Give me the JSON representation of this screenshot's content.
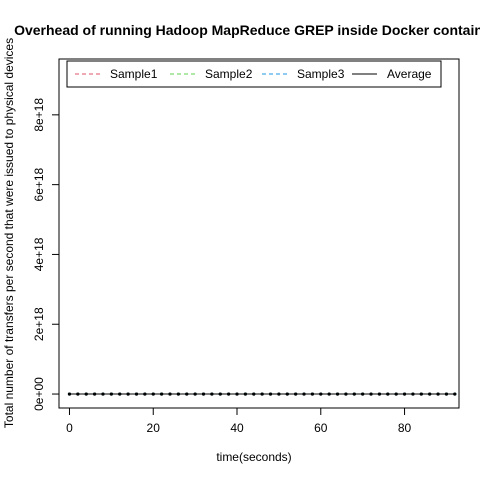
{
  "chart_data": {
    "type": "line",
    "title": "Overhead of running Hadoop MapReduce GREP inside Docker containers",
    "xlabel": "time(seconds)",
    "ylabel": "Total number of transfers per second that were issued to physical devices",
    "xlim": [
      -2.5,
      93
    ],
    "ylim": [
      -4e+17,
      9.6e+18
    ],
    "x_ticks": [
      0,
      20,
      40,
      60,
      80
    ],
    "x_tick_labels": [
      "0",
      "20",
      "40",
      "60",
      "80"
    ],
    "y_ticks": [
      0,
      2e+18,
      4e+18,
      6e+18,
      8e+18
    ],
    "y_tick_labels": [
      "0e+00",
      "2e+18",
      "4e+18",
      "6e+18",
      "8e+18"
    ],
    "grid": false,
    "legend_position": "top-center",
    "x": [
      0,
      2,
      4,
      6,
      8,
      10,
      12,
      14,
      16,
      18,
      20,
      22,
      24,
      26,
      28,
      30,
      32,
      34,
      36,
      38,
      40,
      42,
      44,
      46,
      48,
      50,
      52,
      54,
      56,
      58,
      60,
      62,
      64,
      66,
      68,
      70,
      72,
      74,
      76,
      78,
      80,
      82,
      84,
      86,
      88,
      90,
      92
    ],
    "series": [
      {
        "name": "Sample1",
        "color": "#DF536B",
        "style": "dashed",
        "values": [
          0,
          0,
          0,
          0,
          0,
          0,
          0,
          0,
          0,
          0,
          0,
          0,
          0,
          0,
          0,
          0,
          0,
          0,
          0,
          0,
          0,
          0,
          0,
          0,
          0,
          0,
          0,
          0,
          0,
          0,
          0,
          0,
          0,
          0,
          0,
          0,
          0,
          0,
          0,
          0,
          0,
          0,
          0,
          0,
          0,
          0,
          0
        ]
      },
      {
        "name": "Sample2",
        "color": "#61D04F",
        "style": "dashed",
        "values": [
          0,
          0,
          0,
          0,
          0,
          0,
          0,
          0,
          0,
          0,
          0,
          0,
          0,
          0,
          0,
          0,
          0,
          0,
          0,
          0,
          0,
          0,
          0,
          0,
          0,
          0,
          0,
          0,
          0,
          0,
          0,
          0,
          0,
          0,
          0,
          0,
          0,
          0,
          0,
          0,
          0,
          0,
          0,
          0,
          0,
          0,
          0
        ]
      },
      {
        "name": "Sample3",
        "color": "#2297E6",
        "style": "dashed",
        "values": [
          0,
          0,
          0,
          0,
          0,
          0,
          0,
          0,
          0,
          0,
          0,
          0,
          0,
          0,
          0,
          0,
          0,
          0,
          0,
          0,
          0,
          0,
          0,
          0,
          0,
          0,
          0,
          0,
          0,
          0,
          0,
          0,
          0,
          0,
          0,
          0,
          0,
          0,
          0,
          0,
          0,
          0,
          0,
          0,
          0,
          0,
          0
        ]
      },
      {
        "name": "Average",
        "color": "#000000",
        "style": "solid",
        "values": [
          0,
          0,
          0,
          0,
          0,
          0,
          0,
          0,
          0,
          0,
          0,
          0,
          0,
          0,
          0,
          0,
          0,
          0,
          0,
          0,
          0,
          0,
          0,
          0,
          0,
          0,
          0,
          0,
          0,
          0,
          0,
          0,
          0,
          0,
          0,
          0,
          0,
          0,
          0,
          0,
          0,
          0,
          0,
          0,
          0,
          0,
          0
        ]
      }
    ]
  }
}
